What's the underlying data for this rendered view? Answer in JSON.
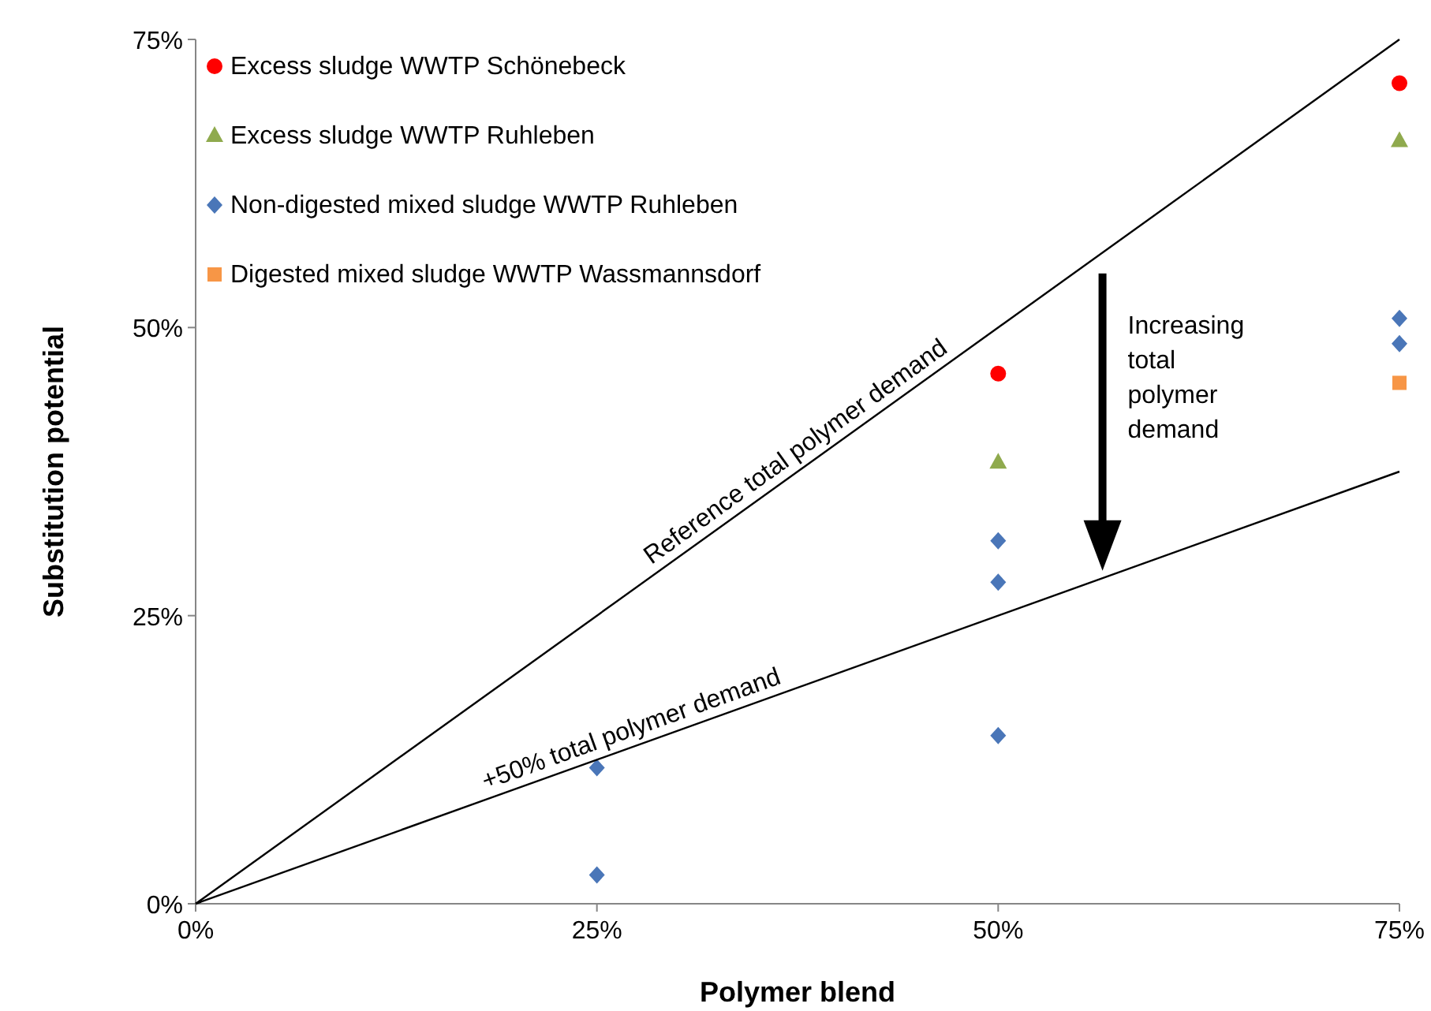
{
  "chart_data": {
    "type": "scatter",
    "xlabel": "Polymer blend",
    "ylabel": "Substitution potential",
    "xlim": [
      0,
      75
    ],
    "ylim": [
      0,
      75
    ],
    "xticks": [
      {
        "value": 0,
        "label": "0%"
      },
      {
        "value": 25,
        "label": "25%"
      },
      {
        "value": 50,
        "label": "50%"
      },
      {
        "value": 75,
        "label": "75%"
      }
    ],
    "yticks": [
      {
        "value": 0,
        "label": "0%"
      },
      {
        "value": 25,
        "label": "25%"
      },
      {
        "value": 50,
        "label": "50%"
      },
      {
        "value": 75,
        "label": "75%"
      }
    ],
    "grid": false,
    "legend": "top left",
    "series": [
      {
        "name": "Excess sludge WWTP Schönebeck",
        "color": "#ff0000",
        "marker": "circle",
        "x": [
          50,
          75
        ],
        "values": [
          46,
          71.2
        ]
      },
      {
        "name": "Excess sludge WWTP Ruhleben",
        "color": "#8faa4d",
        "marker": "triangle",
        "x": [
          50,
          75
        ],
        "values": [
          38.3,
          66.2
        ]
      },
      {
        "name": "Non-digested mixed sludge WWTP Ruhleben",
        "color": "#4a76b8",
        "marker": "diamond",
        "x": [
          25,
          25,
          50,
          50,
          50,
          75,
          75
        ],
        "values": [
          11.8,
          2.5,
          31.5,
          27.9,
          14.6,
          50.8,
          48.6
        ]
      },
      {
        "name": "Digested mixed sludge WWTP Wassmannsdorf",
        "color": "#f79646",
        "marker": "square",
        "x": [
          75
        ],
        "values": [
          45.2
        ]
      },
      {
        "type": "line",
        "color": "#000000",
        "marker": "none",
        "x": [
          0,
          75
        ],
        "values": [
          0,
          75
        ]
      },
      {
        "type": "line",
        "color": "#000000",
        "marker": "none",
        "x": [
          0,
          75
        ],
        "values": [
          0,
          37.5
        ]
      }
    ],
    "annotations": [
      {
        "text": "Reference total polymer demand",
        "x": 38,
        "y": 38
      },
      {
        "text": "+50% total polymer demand",
        "x": 27.5,
        "y": 13.75
      },
      "Increasing total polymer demand"
    ]
  }
}
